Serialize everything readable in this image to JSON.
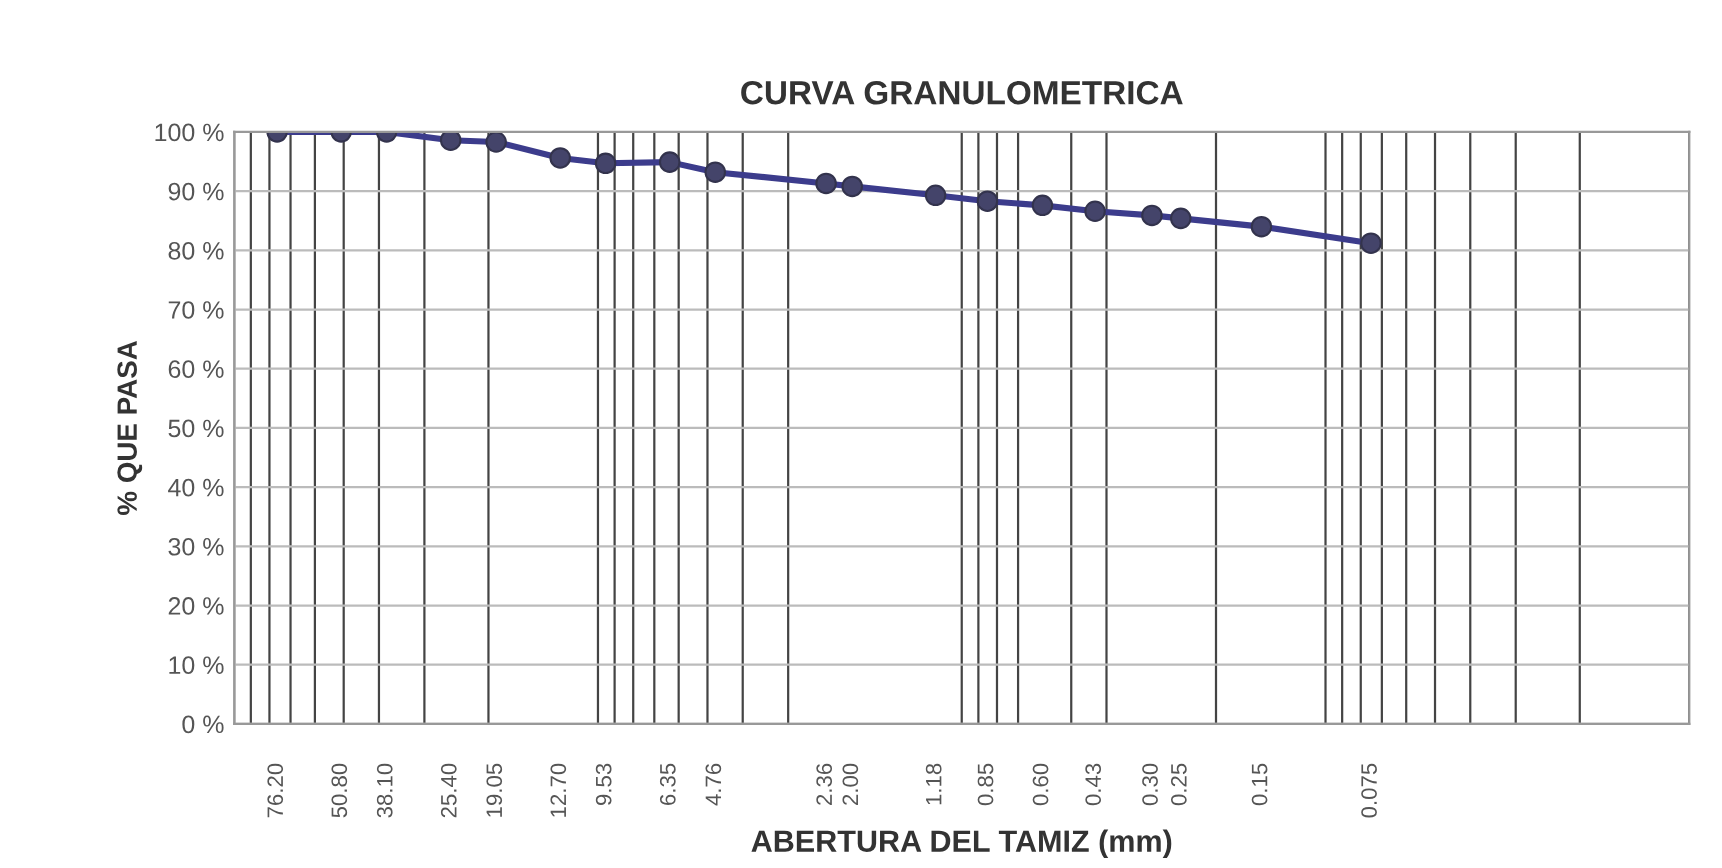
{
  "chart_data": {
    "type": "line",
    "title": "CURVA GRANULOMETRICA",
    "xlabel": "ABERTURA DEL TAMIZ (mm)",
    "ylabel": "% QUE PASA",
    "log": "x",
    "xlim": [
      100,
      0.01
    ],
    "ylim": [
      0,
      100
    ],
    "x": [
      76.2,
      50.8,
      38.1,
      25.4,
      19.05,
      12.7,
      9.53,
      6.35,
      4.76,
      2.36,
      2.0,
      1.18,
      0.85,
      0.6,
      0.43,
      0.3,
      0.25,
      0.15,
      0.075
    ],
    "xticks": [
      {
        "value": 76.2,
        "label": "76.20"
      },
      {
        "value": 50.8,
        "label": "50.80"
      },
      {
        "value": 38.1,
        "label": "38.10"
      },
      {
        "value": 25.4,
        "label": "25.40"
      },
      {
        "value": 19.05,
        "label": "19.05"
      },
      {
        "value": 12.7,
        "label": "12.70"
      },
      {
        "value": 9.53,
        "label": "9.53"
      },
      {
        "value": 6.35,
        "label": "6.35"
      },
      {
        "value": 4.76,
        "label": "4.76"
      },
      {
        "value": 2.36,
        "label": "2.36"
      },
      {
        "value": 2.0,
        "label": "2.00"
      },
      {
        "value": 1.18,
        "label": "1.18"
      },
      {
        "value": 0.85,
        "label": "0.85"
      },
      {
        "value": 0.6,
        "label": "0.60"
      },
      {
        "value": 0.43,
        "label": "0.43"
      },
      {
        "value": 0.3,
        "label": "0.30"
      },
      {
        "value": 0.25,
        "label": "0.25"
      },
      {
        "value": 0.15,
        "label": "0.15"
      },
      {
        "value": 0.075,
        "label": "0.075"
      }
    ],
    "yticks": [
      {
        "value": 0,
        "label": "0 %"
      },
      {
        "value": 10,
        "label": "10 %"
      },
      {
        "value": 20,
        "label": "20 %"
      },
      {
        "value": 30,
        "label": "30 %"
      },
      {
        "value": 40,
        "label": "40 %"
      },
      {
        "value": 50,
        "label": "50 %"
      },
      {
        "value": 60,
        "label": "60 %"
      },
      {
        "value": 70,
        "label": "70 %"
      },
      {
        "value": 80,
        "label": "80 %"
      },
      {
        "value": 90,
        "label": "90 %"
      },
      {
        "value": 100,
        "label": "100 %"
      }
    ],
    "grid": true,
    "marker": "circle",
    "line_style": "solid",
    "series": [
      {
        "color": "#3c3c8c",
        "values": [
          100,
          100,
          100,
          98.6,
          98.3,
          95.6,
          94.7,
          94.9,
          93.2,
          91.3,
          90.8,
          89.3,
          88.3,
          87.6,
          86.6,
          85.9,
          85.4,
          84.0,
          81.2
        ]
      }
    ]
  }
}
